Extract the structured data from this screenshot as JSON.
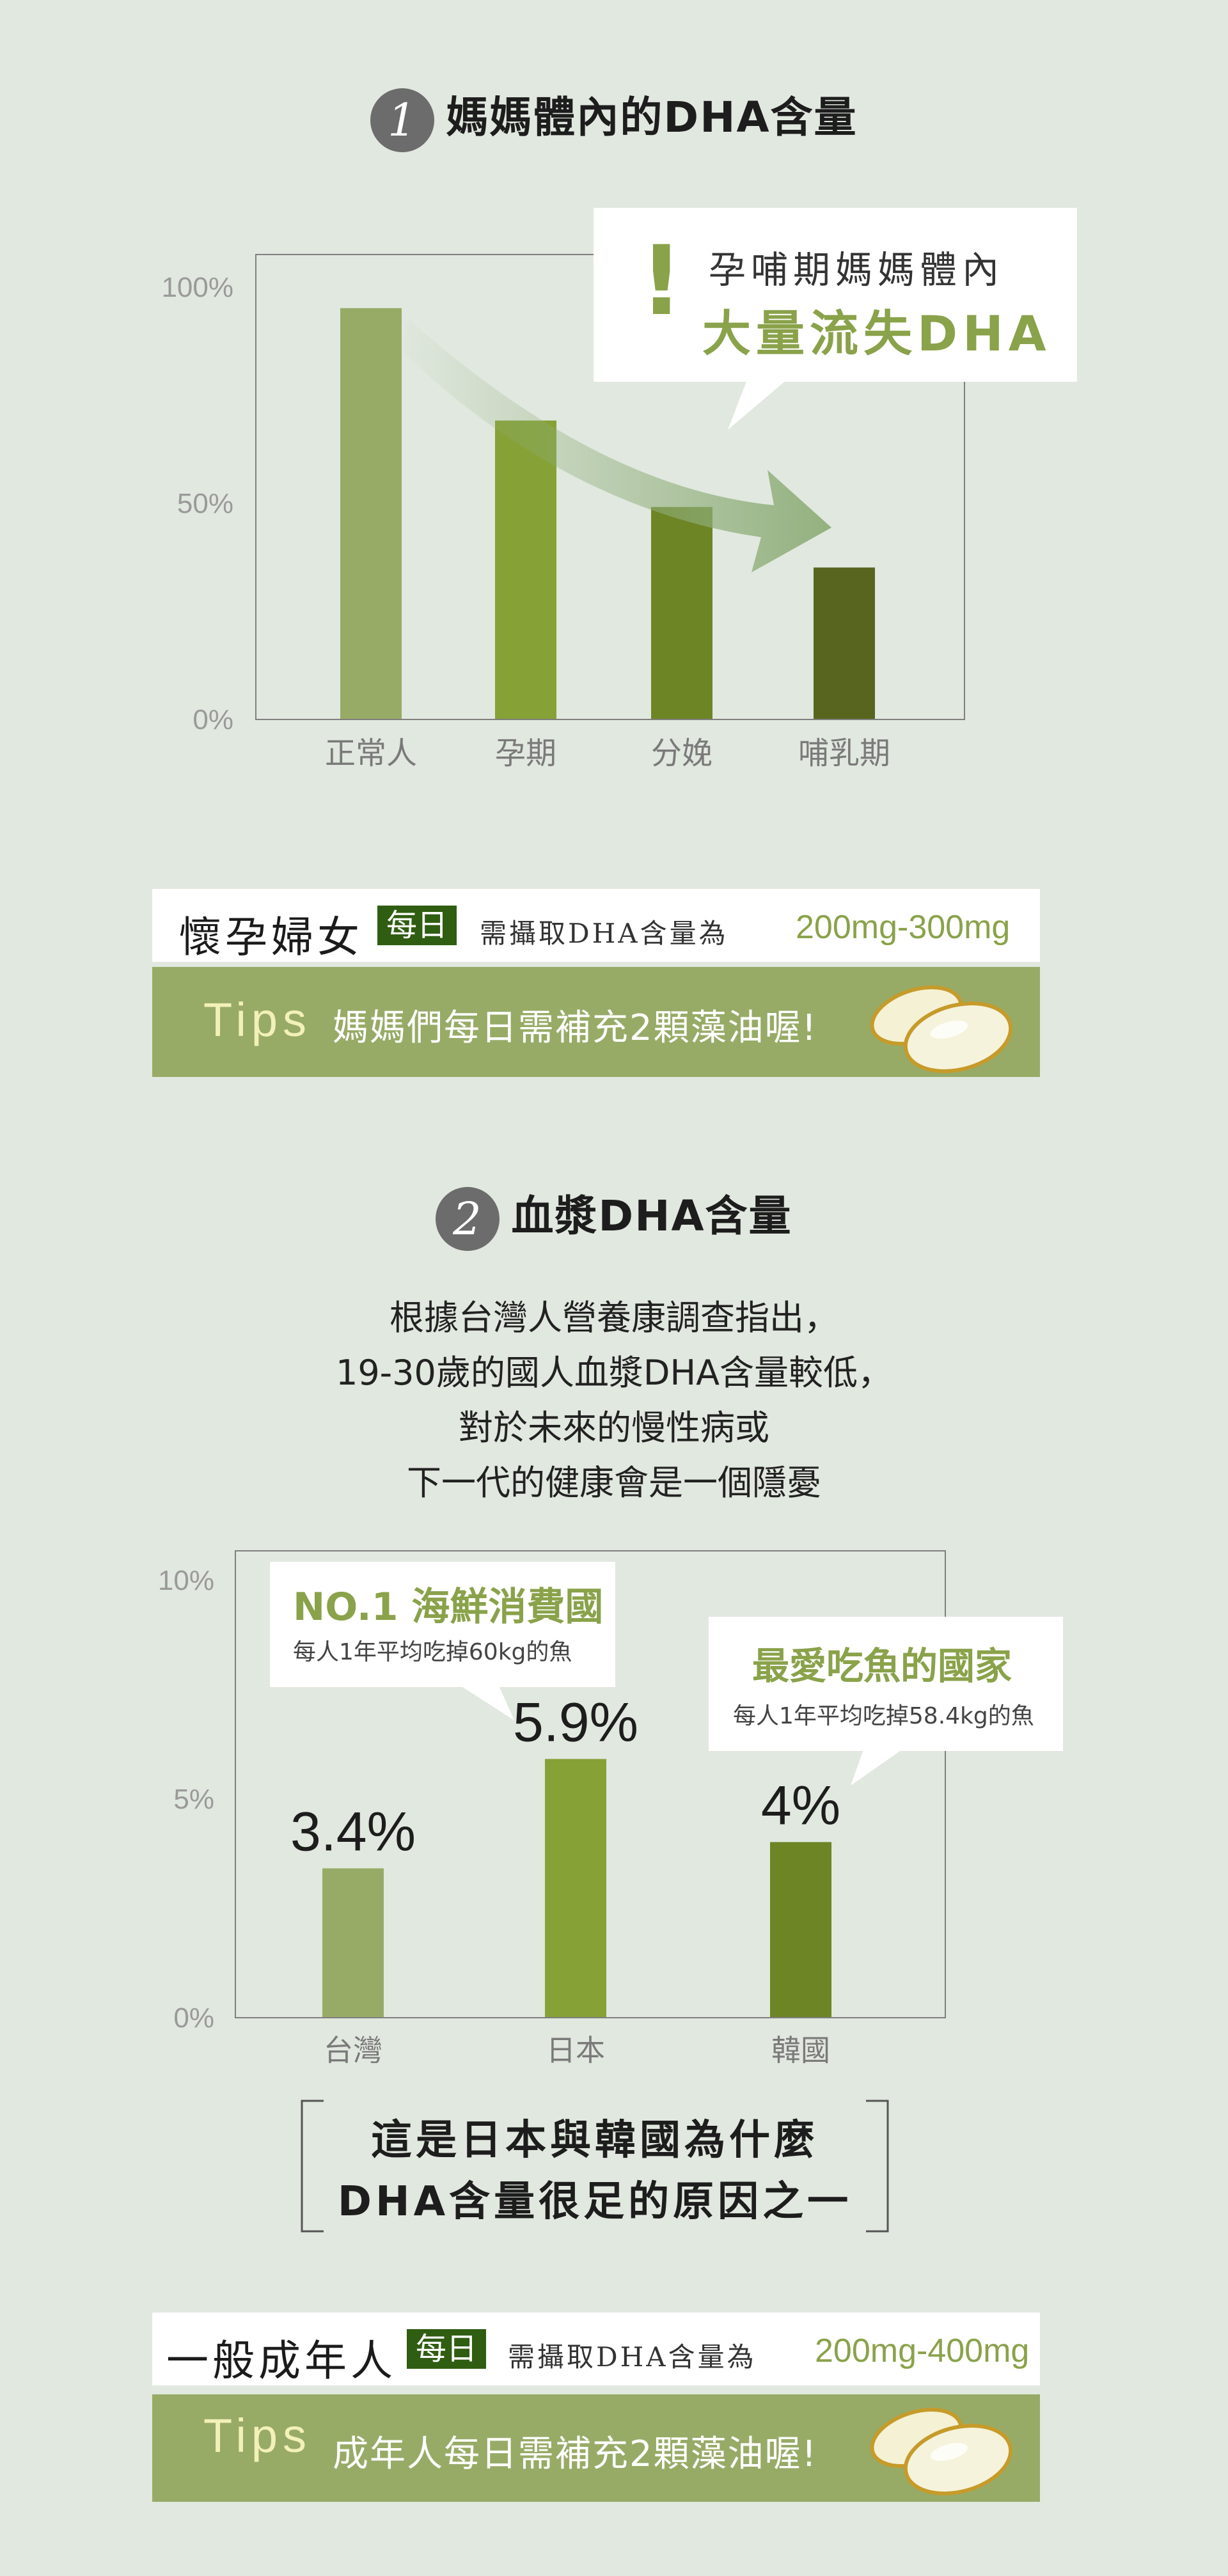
{
  "section1": {
    "number": "1",
    "title": "媽媽體內的DHA含量"
  },
  "callout1": {
    "exclaim": "!",
    "line1": "孕哺期媽媽體內",
    "line2": "大量流失DHA"
  },
  "pregnant": {
    "label": "懷孕婦女",
    "badge": "每日",
    "intake": "需攝取DHA含量為",
    "range": "200mg-300mg",
    "tips_label": "Tips",
    "tips_text": "媽媽們每日需補充2顆藻油喔!"
  },
  "section2": {
    "number": "2",
    "title": "血漿DHA含量"
  },
  "paragraph": [
    "根據台灣人營養康調查指出，",
    "19-30歲的國人血漿DHA含量較低，",
    "對於未來的慢性病或",
    "下一代的健康會是一個隱憂"
  ],
  "callout_japan": {
    "title": "NO.1 海鮮消費國",
    "sub": "每人1年平均吃掉60kg的魚"
  },
  "callout_korea": {
    "title": "最愛吃魚的國家",
    "sub": "每人1年平均吃掉58.4kg的魚"
  },
  "bracket": {
    "line1": "這是日本與韓國為什麼",
    "line2": "DHA含量很足的原因之一"
  },
  "adult": {
    "label": "一般成年人",
    "badge": "每日",
    "intake": "需攝取DHA含量為",
    "range": "200mg-400mg",
    "tips_label": "Tips",
    "tips_text": "成年人每日需補充2顆藻油喔!"
  },
  "colors": {
    "background": "#e1e8df",
    "bar1": "#97ab67",
    "bar2": "#86a136",
    "bar3": "#6d8525",
    "bar4": "#58651f",
    "accent": "#8aa24a",
    "badge": "#2f5d12",
    "tips": "#97ab67"
  },
  "chart_data": [
    {
      "type": "bar",
      "title": "媽媽體內的DHA含量",
      "categories": [
        "正常人",
        "孕期",
        "分娩",
        "哺乳期"
      ],
      "values": [
        95,
        69,
        49,
        35
      ],
      "yticks": [
        "100%",
        "50%",
        "0%"
      ],
      "ytick_values": [
        100,
        50,
        0
      ],
      "ylim": [
        0,
        100
      ],
      "annotations": [
        "孕哺期媽媽體內",
        "大量流失DHA"
      ]
    },
    {
      "type": "bar",
      "title": "血漿DHA含量",
      "categories": [
        "台灣",
        "日本",
        "韓國"
      ],
      "values": [
        3.4,
        5.9,
        4
      ],
      "value_labels": [
        "3.4%",
        "5.9%",
        "4%"
      ],
      "yticks": [
        "10%",
        "5%",
        "0%"
      ],
      "ytick_values": [
        10,
        5,
        0
      ],
      "ylim": [
        0,
        10
      ]
    }
  ]
}
